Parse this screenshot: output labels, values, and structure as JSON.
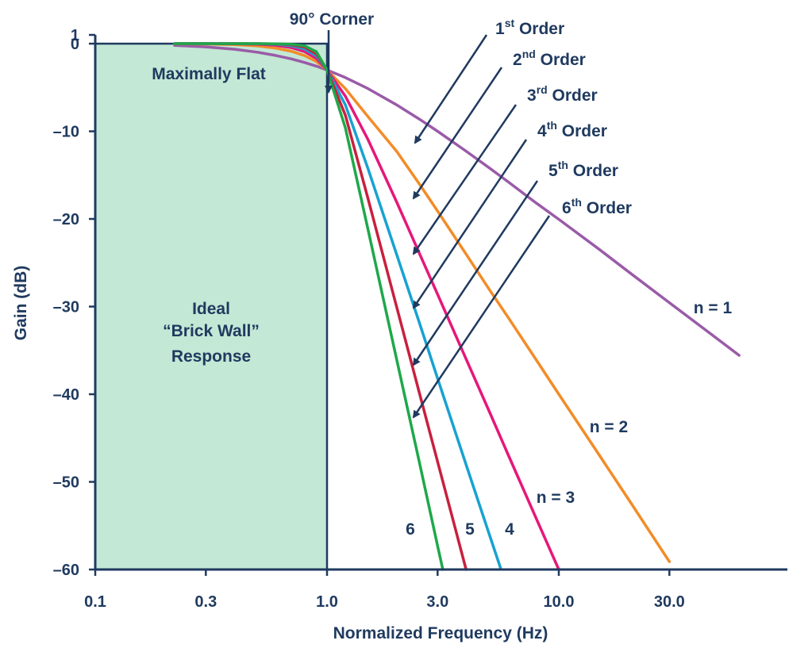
{
  "chart_data": {
    "type": "line",
    "xlabel": "Normalized Frequency (Hz)",
    "ylabel": "Gain (dB)",
    "x_scale": "log",
    "xlim": [
      0.1,
      60
    ],
    "ylim": [
      -60,
      1
    ],
    "x_ticks": [
      {
        "value": 0.1,
        "label": "0.1"
      },
      {
        "value": 0.3,
        "label": "0.3"
      },
      {
        "value": 1.0,
        "label": "1.0"
      },
      {
        "value": 3.0,
        "label": "3.0"
      },
      {
        "value": 10.0,
        "label": "10.0"
      },
      {
        "value": 30.0,
        "label": "30.0"
      }
    ],
    "y_ticks": [
      {
        "value": 1,
        "label": "1"
      },
      {
        "value": 0,
        "label": "0"
      },
      {
        "value": -10,
        "label": "–10"
      },
      {
        "value": -20,
        "label": "–20"
      },
      {
        "value": -30,
        "label": "–30"
      },
      {
        "value": -40,
        "label": "–40"
      },
      {
        "value": -50,
        "label": "–50"
      },
      {
        "value": -60,
        "label": "–60"
      }
    ],
    "grid": false,
    "ideal_response": {
      "label_lines": [
        "Ideal",
        "“Brick Wall”",
        "Response"
      ],
      "passband_gain_db": 0,
      "corner_frequency": 1.0,
      "fill_color": "#c3e8d5"
    },
    "series": [
      {
        "order": 1,
        "curve_label": "n = 1",
        "color": "#9a5ba8",
        "x": [
          0.22,
          0.3,
          0.4,
          0.5,
          0.6,
          0.7,
          0.8,
          0.9,
          1.0,
          1.2,
          1.5,
          2.0,
          2.5,
          3.0,
          4.0,
          5.0,
          6.0,
          8.0,
          10.0,
          15.0,
          20.0,
          30.0,
          40.0,
          50.0,
          60.0
        ],
        "y": [
          -0.2,
          -0.37,
          -0.64,
          -0.97,
          -1.34,
          -1.73,
          -2.15,
          -2.57,
          -3.01,
          -3.87,
          -5.12,
          -6.99,
          -8.6,
          -10.0,
          -12.3,
          -14.15,
          -15.7,
          -18.2,
          -20.04,
          -23.5,
          -26.03,
          -29.55,
          -32.04,
          -33.98,
          -35.56
        ]
      },
      {
        "order": 2,
        "curve_label": "n = 2",
        "color": "#f28c28",
        "x": [
          0.22,
          0.3,
          0.4,
          0.5,
          0.6,
          0.7,
          0.8,
          0.9,
          1.0,
          1.2,
          1.5,
          2.0,
          2.5,
          3.0,
          4.0,
          5.0,
          6.0,
          8.0,
          10.0,
          15.0,
          20.0,
          30.0
        ],
        "y": [
          -0.01,
          -0.04,
          -0.11,
          -0.26,
          -0.5,
          -0.86,
          -1.36,
          -2.04,
          -3.01,
          -5.13,
          -8.3,
          -12.3,
          -16.0,
          -19.1,
          -24.1,
          -28.0,
          -31.1,
          -36.1,
          -40.0,
          -47.0,
          -52.0,
          -59.1
        ]
      },
      {
        "order": 3,
        "curve_label": "n = 3",
        "color": "#e6177a",
        "x": [
          0.22,
          0.3,
          0.4,
          0.5,
          0.6,
          0.7,
          0.8,
          0.9,
          1.0,
          1.2,
          1.5,
          2.0,
          2.5,
          3.0,
          4.0,
          5.0,
          6.0,
          8.0,
          10.0
        ],
        "y": [
          0.0,
          0.0,
          -0.02,
          -0.07,
          -0.19,
          -0.45,
          -0.9,
          -1.7,
          -3.01,
          -6.0,
          -10.9,
          -18.1,
          -23.9,
          -28.6,
          -36.1,
          -41.9,
          -46.7,
          -54.2,
          -60.0
        ]
      },
      {
        "order": 4,
        "curve_label": "4",
        "color": "#17a2d2",
        "x": [
          0.22,
          0.3,
          0.4,
          0.5,
          0.6,
          0.7,
          0.8,
          0.9,
          1.0,
          1.2,
          1.5,
          2.0,
          2.5,
          3.0,
          4.0,
          5.0,
          5.6
        ],
        "y": [
          0.0,
          0.0,
          0.0,
          -0.02,
          -0.07,
          -0.23,
          -0.6,
          -1.4,
          -3.01,
          -6.98,
          -14.2,
          -24.1,
          -31.8,
          -38.2,
          -48.2,
          -55.9,
          -59.8
        ]
      },
      {
        "order": 5,
        "curve_label": "5",
        "color": "#c8203e",
        "x": [
          0.22,
          0.3,
          0.4,
          0.5,
          0.6,
          0.7,
          0.8,
          0.9,
          1.0,
          1.2,
          1.5,
          2.0,
          2.5,
          3.0,
          3.5,
          3.98
        ],
        "y": [
          0.0,
          0.0,
          0.0,
          0.0,
          -0.03,
          -0.12,
          -0.39,
          -1.15,
          -3.01,
          -8.16,
          -17.6,
          -30.1,
          -39.8,
          -47.7,
          -54.4,
          -60.0
        ]
      },
      {
        "order": 6,
        "curve_label": "6",
        "color": "#1ea84a",
        "x": [
          0.22,
          0.3,
          0.4,
          0.5,
          0.6,
          0.7,
          0.8,
          0.9,
          1.0,
          1.2,
          1.5,
          2.0,
          2.5,
          3.0,
          3.16
        ],
        "y": [
          0.0,
          0.0,
          0.0,
          0.0,
          -0.01,
          -0.06,
          -0.25,
          -0.92,
          -3.01,
          -9.6,
          -21.1,
          -36.1,
          -47.7,
          -57.3,
          -60.0
        ]
      }
    ]
  },
  "annotations": {
    "corner_label": "90° Corner",
    "flat_label": "Maximally Flat",
    "orders": [
      {
        "num": "1",
        "sup": "st",
        "word": " Order"
      },
      {
        "num": "2",
        "sup": "nd",
        "word": " Order"
      },
      {
        "num": "3",
        "sup": "rd",
        "word": " Order"
      },
      {
        "num": "4",
        "sup": "th",
        "word": " Order"
      },
      {
        "num": "5",
        "sup": "th",
        "word": " Order"
      },
      {
        "num": "6",
        "sup": "th",
        "word": " Order"
      }
    ],
    "text_color": "#1f3a5f",
    "axis_color": "#1f3a5f"
  }
}
